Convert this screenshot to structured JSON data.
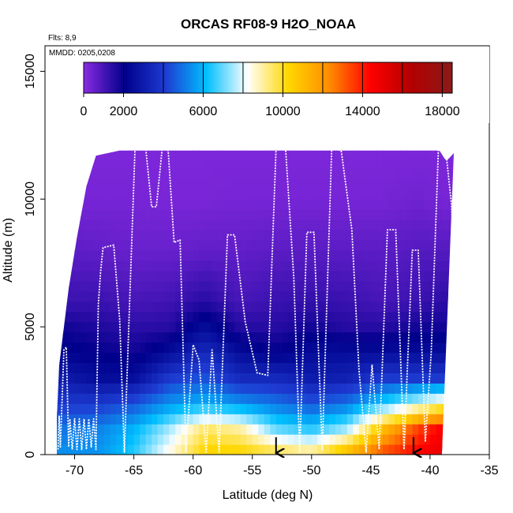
{
  "chart_data": {
    "type": "heatmap",
    "title": "ORCAS RF08-9 H2O_NOAA",
    "info_lines": [
      "Flts: 8,9",
      "MMDD: 0205,0208"
    ],
    "xlabel": "Latitude (deg N)",
    "ylabel": "Altitude (m)",
    "xlim": [
      -72.5,
      -35
    ],
    "ylim": [
      0,
      16000
    ],
    "x_ticks": [
      -70,
      -65,
      -60,
      -55,
      -50,
      -45,
      -40,
      -35
    ],
    "y_ticks": [
      0,
      5000,
      10000,
      15000
    ],
    "colorbar": {
      "range": [
        0,
        18500
      ],
      "ticks": [
        0,
        2000,
        6000,
        10000,
        14000,
        18000
      ],
      "divisions": [
        2000,
        4000,
        6000,
        8000,
        10000,
        12000,
        14000,
        16000,
        18000
      ],
      "colors": [
        "#8a2be2",
        "#00008b",
        "#1e3cd2",
        "#00bfff",
        "#ffffff",
        "#ffd700",
        "#ff8c00",
        "#ff0000",
        "#b30000",
        "#8b1a1a"
      ]
    },
    "curtain_outline": {
      "lat": [
        -71.5,
        -71.3,
        -70.5,
        -69.8,
        -69.0,
        -68.2,
        -67.2,
        -66.2,
        -59.0,
        -55.0,
        -50.0,
        -45.0,
        -40.0,
        -39.2,
        -38.8,
        -38.6,
        -38.0,
        -39.0,
        -40.0,
        -40.0
      ],
      "top": [
        1400,
        3500,
        6500,
        8500,
        10500,
        11700,
        11800,
        11900,
        11900,
        11900,
        11900,
        11900,
        11900,
        11900,
        11600,
        11500,
        11800,
        0,
        0,
        0
      ],
      "bottom": [
        0,
        0,
        0,
        0,
        0,
        0,
        0,
        0,
        0,
        0,
        0,
        0,
        0,
        0,
        0,
        0,
        0,
        0,
        0,
        0
      ]
    },
    "h2o_field": {
      "altitude_levels": [
        0,
        1000,
        2000,
        3000,
        4000,
        5000,
        6000,
        8000,
        10000,
        12000
      ],
      "latitudes": [
        -71,
        -68,
        -65,
        -62,
        -59,
        -56,
        -53,
        -50,
        -47,
        -44,
        -41,
        -39
      ],
      "values": [
        [
          5500,
          5500,
          6500,
          8500,
          10500,
          10500,
          10000,
          9500,
          11500,
          13500,
          14500,
          15000
        ],
        [
          5000,
          5200,
          6000,
          7500,
          9500,
          9000,
          7000,
          6500,
          7500,
          11000,
          13500,
          14500
        ],
        [
          4000,
          4000,
          4500,
          5500,
          6000,
          5500,
          5000,
          4500,
          5000,
          6500,
          8000,
          9000
        ],
        [
          3000,
          2500,
          2500,
          4000,
          4500,
          3500,
          3500,
          3000,
          3200,
          4000,
          4000,
          4000
        ],
        [
          2200,
          2000,
          1800,
          2500,
          3500,
          2500,
          2000,
          2500,
          2500,
          2500,
          2500,
          2500
        ],
        [
          1800,
          1600,
          1400,
          1500,
          2500,
          1500,
          1500,
          1800,
          1500,
          1500,
          1800,
          1800
        ],
        [
          1200,
          1200,
          1000,
          1100,
          1500,
          1000,
          1200,
          1300,
          1200,
          1000,
          1200,
          1400
        ],
        [
          700,
          600,
          500,
          500,
          600,
          600,
          700,
          700,
          700,
          700,
          800,
          800
        ],
        [
          300,
          300,
          300,
          250,
          250,
          300,
          300,
          300,
          300,
          300,
          400,
          300
        ],
        [
          200,
          200,
          200,
          200,
          200,
          200,
          200,
          200,
          200,
          200,
          200,
          200
        ]
      ]
    },
    "flight_track": {
      "lat": [
        -71.4,
        -71.3,
        -71.2,
        -70.9,
        -70.7,
        -70.5,
        -70.4,
        -70.2,
        -70.0,
        -69.8,
        -69.6,
        -69.4,
        -69.2,
        -69.0,
        -68.8,
        -68.6,
        -68.4,
        -68.2,
        -68.0,
        -67.8,
        -67.6,
        -66.7,
        -66.2,
        -65.8,
        -64.9,
        -64.0,
        -63.5,
        -63.1,
        -62.6,
        -62.1,
        -61.6,
        -61.1,
        -60.6,
        -60.0,
        -59.5,
        -58.9,
        -58.4,
        -57.8,
        -57.1,
        -56.5,
        -55.6,
        -54.6,
        -53.7,
        -53.0,
        -52.2,
        -51.5,
        -51.0,
        -50.4,
        -49.8,
        -49.1,
        -48.3,
        -47.5,
        -46.6,
        -46.0,
        -45.4,
        -44.9,
        -44.3,
        -43.6,
        -42.9,
        -42.2,
        -41.5,
        -41.0,
        -40.4,
        -39.9,
        -39.3,
        -38.7,
        -38.2,
        -37.8,
        -37.4,
        -37.1
      ],
      "alt": [
        200,
        1500,
        300,
        4100,
        4200,
        300,
        1400,
        200,
        1400,
        200,
        1400,
        200,
        1400,
        200,
        1400,
        300,
        1400,
        200,
        5900,
        7200,
        8100,
        8200,
        5300,
        100,
        12000,
        12000,
        9700,
        9700,
        12000,
        11900,
        8300,
        8400,
        100,
        4300,
        3700,
        100,
        4100,
        100,
        8600,
        8600,
        5200,
        3200,
        3100,
        12000,
        12000,
        6900,
        100,
        8700,
        8700,
        200,
        12000,
        11900,
        8800,
        3300,
        100,
        3500,
        200,
        8800,
        8800,
        200,
        8000,
        8000,
        500,
        4000,
        11900,
        12000,
        9800,
        6000,
        7000,
        12000
      ]
    },
    "arrows_lat": [
      -53.0,
      -41.4
    ]
  }
}
